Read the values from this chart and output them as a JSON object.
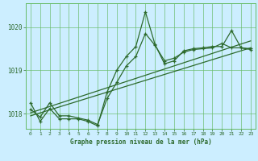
{
  "title": "",
  "xlabel": "Graphe pression niveau de la mer (hPa)",
  "ylabel": "",
  "bg_color": "#cceeff",
  "grid_color": "#66bb66",
  "line_color": "#2d6a2d",
  "xlim": [
    -0.5,
    23.5
  ],
  "ylim": [
    1017.65,
    1020.55
  ],
  "yticks": [
    1018,
    1019,
    1020
  ],
  "xticks": [
    0,
    1,
    2,
    3,
    4,
    5,
    6,
    7,
    8,
    9,
    10,
    11,
    12,
    13,
    14,
    15,
    16,
    17,
    18,
    19,
    20,
    21,
    22,
    23
  ],
  "series1_x": [
    0,
    1,
    2,
    3,
    4,
    5,
    6,
    7,
    8,
    9,
    10,
    11,
    12,
    13,
    14,
    15,
    16,
    17,
    18,
    19,
    20,
    21,
    22,
    23
  ],
  "series1_y": [
    1018.25,
    1017.82,
    1018.12,
    1017.88,
    1017.88,
    1017.88,
    1017.82,
    1017.72,
    1018.5,
    1019.0,
    1019.32,
    1019.55,
    1020.35,
    1019.6,
    1019.15,
    1019.22,
    1019.45,
    1019.5,
    1019.52,
    1019.55,
    1019.55,
    1019.92,
    1019.52,
    1019.5
  ],
  "series2_x": [
    0,
    1,
    2,
    3,
    4,
    5,
    6,
    7,
    8,
    9,
    10,
    11,
    12,
    13,
    14,
    15,
    16,
    17,
    18,
    19,
    20,
    21,
    22,
    23
  ],
  "series2_y": [
    1018.1,
    1017.92,
    1018.25,
    1017.95,
    1017.95,
    1017.9,
    1017.85,
    1017.75,
    1018.35,
    1018.72,
    1019.1,
    1019.32,
    1019.85,
    1019.58,
    1019.22,
    1019.28,
    1019.42,
    1019.48,
    1019.5,
    1019.52,
    1019.62,
    1019.52,
    1019.52,
    1019.48
  ],
  "trend1_x": [
    0,
    23
  ],
  "trend1_y": [
    1018.02,
    1019.68
  ],
  "trend2_x": [
    0,
    23
  ],
  "trend2_y": [
    1017.95,
    1019.52
  ]
}
